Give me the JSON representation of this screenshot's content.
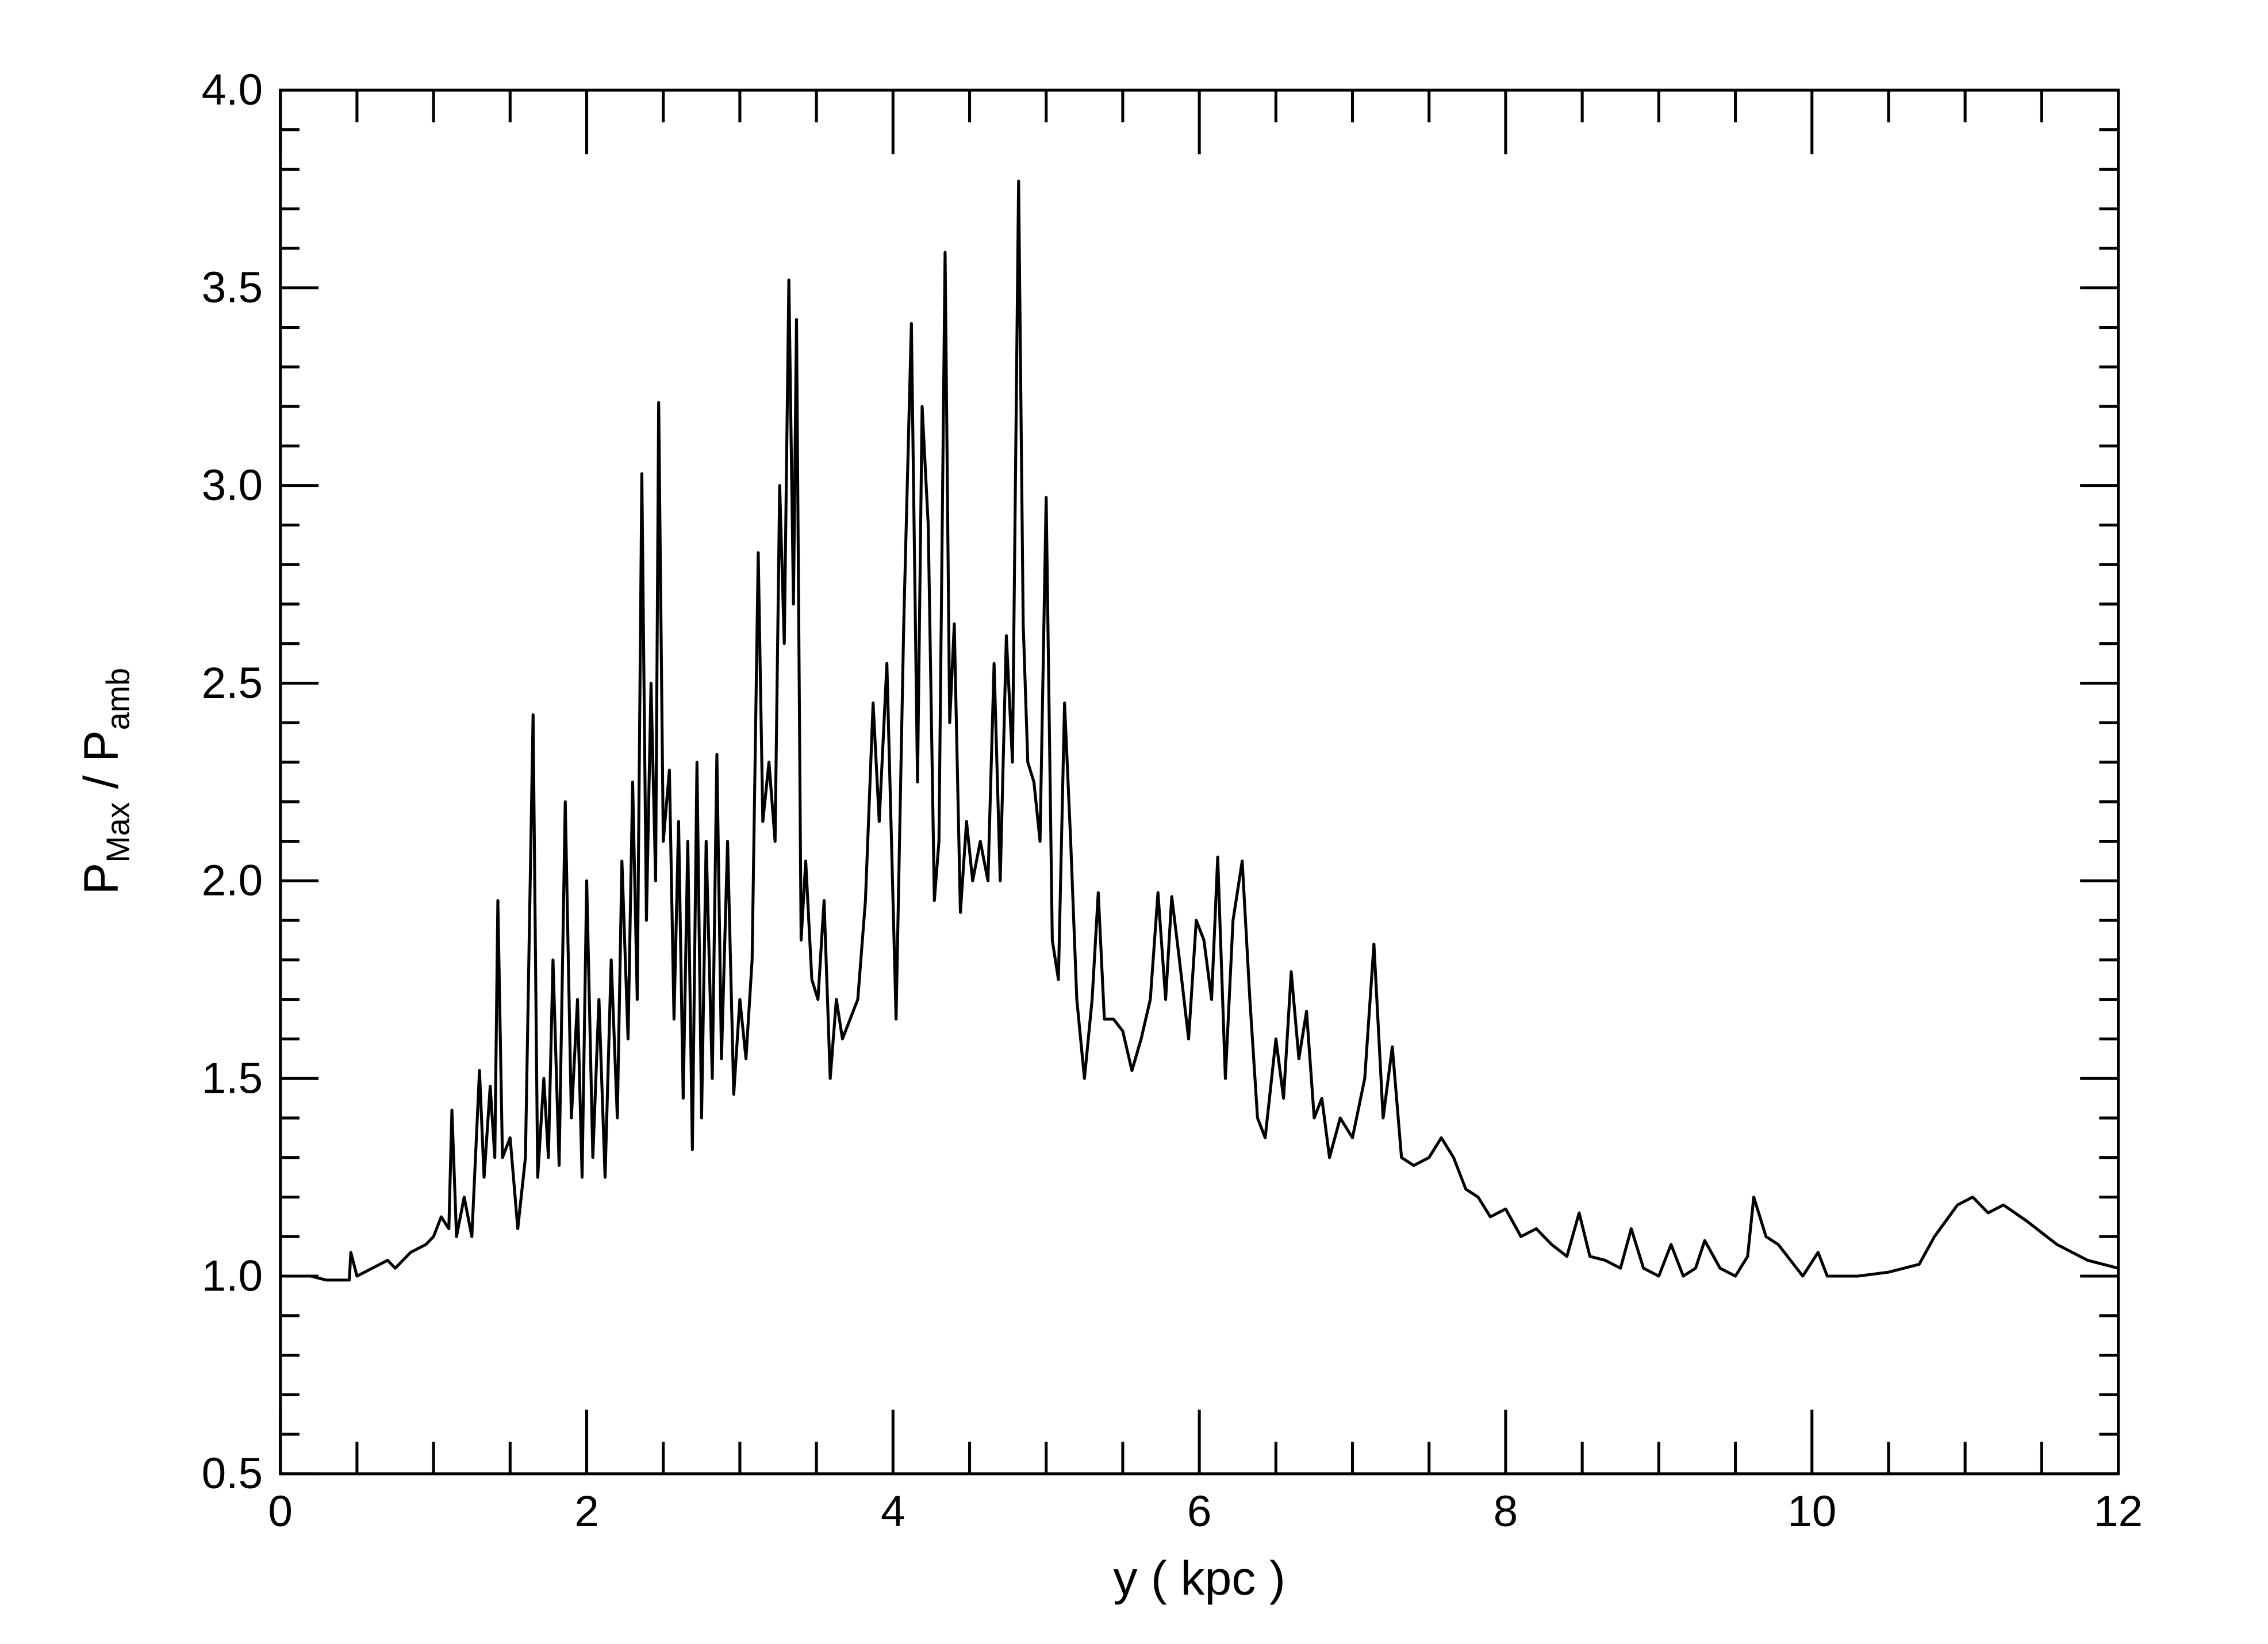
{
  "chart_data": {
    "type": "line",
    "xlabel": "y ( kpc )",
    "ylabel": [
      "P",
      "Max",
      " / P",
      "amb"
    ],
    "xlim": [
      0,
      12
    ],
    "ylim": [
      0.5,
      4.0
    ],
    "xticks": [
      0,
      2,
      4,
      6,
      8,
      10,
      12
    ],
    "yticks": [
      0.5,
      {
        "value": 1,
        "label": "1.0"
      },
      1.5,
      {
        "value": 2,
        "label": "2.0"
      },
      2.5,
      {
        "value": 3,
        "label": "3.0"
      },
      3.5,
      {
        "value": 4,
        "label": "4.0"
      }
    ],
    "xminorticks": [
      0.5,
      1,
      1.5,
      2.5,
      3,
      3.5,
      4.5,
      5,
      5.5,
      6.5,
      7,
      7.5,
      8.5,
      9,
      9.5,
      10.5,
      11,
      11.5
    ],
    "yminorticks": [
      0.6,
      0.7,
      0.8,
      0.9,
      1.1,
      1.2,
      1.3,
      1.4,
      1.6,
      1.7,
      1.8,
      1.9,
      2.1,
      2.2,
      2.3,
      2.4,
      2.6,
      2.7,
      2.8,
      2.9,
      3.1,
      3.2,
      3.3,
      3.4,
      3.6,
      3.7,
      3.8,
      3.9
    ],
    "color": "#000000",
    "x": [
      0.0,
      0.2,
      0.3,
      0.45,
      0.46,
      0.5,
      0.6,
      0.7,
      0.75,
      0.85,
      0.95,
      1.0,
      1.05,
      1.1,
      1.12,
      1.15,
      1.2,
      1.25,
      1.3,
      1.33,
      1.37,
      1.4,
      1.42,
      1.45,
      1.5,
      1.55,
      1.6,
      1.65,
      1.68,
      1.72,
      1.75,
      1.78,
      1.82,
      1.86,
      1.9,
      1.94,
      1.97,
      2.0,
      2.04,
      2.08,
      2.12,
      2.16,
      2.2,
      2.23,
      2.27,
      2.3,
      2.33,
      2.36,
      2.39,
      2.42,
      2.45,
      2.47,
      2.5,
      2.54,
      2.57,
      2.6,
      2.63,
      2.66,
      2.69,
      2.72,
      2.75,
      2.78,
      2.82,
      2.85,
      2.88,
      2.92,
      2.96,
      3.0,
      3.04,
      3.08,
      3.12,
      3.15,
      3.19,
      3.23,
      3.26,
      3.29,
      3.32,
      3.35,
      3.37,
      3.4,
      3.43,
      3.47,
      3.51,
      3.55,
      3.59,
      3.63,
      3.67,
      3.72,
      3.77,
      3.82,
      3.87,
      3.91,
      3.96,
      4.02,
      4.07,
      4.12,
      4.16,
      4.19,
      4.23,
      4.27,
      4.3,
      4.34,
      4.37,
      4.4,
      4.44,
      4.48,
      4.52,
      4.57,
      4.62,
      4.66,
      4.7,
      4.74,
      4.78,
      4.82,
      4.85,
      4.88,
      4.92,
      4.96,
      5.0,
      5.04,
      5.08,
      5.12,
      5.16,
      5.2,
      5.25,
      5.3,
      5.34,
      5.38,
      5.44,
      5.5,
      5.56,
      5.62,
      5.68,
      5.73,
      5.78,
      5.82,
      5.87,
      5.93,
      5.98,
      6.03,
      6.08,
      6.12,
      6.17,
      6.22,
      6.28,
      6.33,
      6.38,
      6.43,
      6.5,
      6.55,
      6.6,
      6.65,
      6.7,
      6.75,
      6.8,
      6.85,
      6.92,
      7.0,
      7.08,
      7.14,
      7.2,
      7.26,
      7.32,
      7.4,
      7.5,
      7.58,
      7.66,
      7.74,
      7.82,
      7.9,
      8.0,
      8.1,
      8.2,
      8.3,
      8.4,
      8.48,
      8.55,
      8.65,
      8.75,
      8.82,
      8.9,
      9.0,
      9.08,
      9.16,
      9.24,
      9.3,
      9.4,
      9.5,
      9.58,
      9.62,
      9.7,
      9.78,
      9.86,
      9.94,
      10.04,
      10.1,
      10.3,
      10.5,
      10.7,
      10.8,
      10.95,
      11.05,
      11.15,
      11.25,
      11.4,
      11.6,
      11.8,
      12.0
    ],
    "values": [
      1.0,
      1.0,
      0.99,
      0.99,
      1.06,
      1.0,
      1.02,
      1.04,
      1.02,
      1.06,
      1.08,
      1.1,
      1.15,
      1.12,
      1.42,
      1.1,
      1.2,
      1.1,
      1.52,
      1.25,
      1.48,
      1.3,
      1.95,
      1.3,
      1.35,
      1.12,
      1.3,
      2.42,
      1.25,
      1.5,
      1.3,
      1.8,
      1.28,
      2.2,
      1.4,
      1.7,
      1.25,
      2.0,
      1.3,
      1.7,
      1.25,
      1.8,
      1.4,
      2.05,
      1.6,
      2.25,
      1.7,
      3.03,
      1.9,
      2.5,
      2.0,
      3.21,
      2.1,
      2.28,
      1.65,
      2.15,
      1.45,
      2.1,
      1.32,
      2.3,
      1.4,
      2.1,
      1.5,
      2.32,
      1.55,
      2.1,
      1.46,
      1.7,
      1.55,
      1.8,
      2.83,
      2.15,
      2.3,
      2.1,
      3.0,
      2.6,
      3.52,
      2.7,
      3.42,
      1.85,
      2.05,
      1.75,
      1.7,
      1.95,
      1.5,
      1.7,
      1.6,
      1.65,
      1.7,
      1.95,
      2.45,
      2.15,
      2.55,
      1.65,
      2.65,
      3.41,
      2.25,
      3.2,
      2.9,
      1.95,
      2.1,
      3.59,
      2.4,
      2.65,
      1.92,
      2.15,
      2.0,
      2.1,
      2.0,
      2.55,
      2.0,
      2.62,
      2.3,
      3.77,
      2.65,
      2.3,
      2.25,
      2.1,
      2.97,
      1.85,
      1.75,
      2.45,
      2.1,
      1.7,
      1.5,
      1.7,
      1.97,
      1.65,
      1.65,
      1.62,
      1.52,
      1.6,
      1.7,
      1.97,
      1.7,
      1.96,
      1.8,
      1.6,
      1.9,
      1.85,
      1.7,
      2.06,
      1.5,
      1.9,
      2.05,
      1.7,
      1.4,
      1.35,
      1.6,
      1.45,
      1.77,
      1.55,
      1.67,
      1.4,
      1.45,
      1.3,
      1.4,
      1.35,
      1.5,
      1.84,
      1.4,
      1.58,
      1.3,
      1.28,
      1.3,
      1.35,
      1.3,
      1.22,
      1.2,
      1.15,
      1.17,
      1.1,
      1.12,
      1.08,
      1.05,
      1.16,
      1.05,
      1.04,
      1.02,
      1.12,
      1.02,
      1.0,
      1.08,
      1.0,
      1.02,
      1.09,
      1.02,
      1.0,
      1.05,
      1.2,
      1.1,
      1.08,
      1.04,
      1.0,
      1.06,
      1.0,
      1.0,
      1.01,
      1.03,
      1.1,
      1.18,
      1.2,
      1.16,
      1.18,
      1.14,
      1.08,
      1.04,
      1.02
    ]
  }
}
